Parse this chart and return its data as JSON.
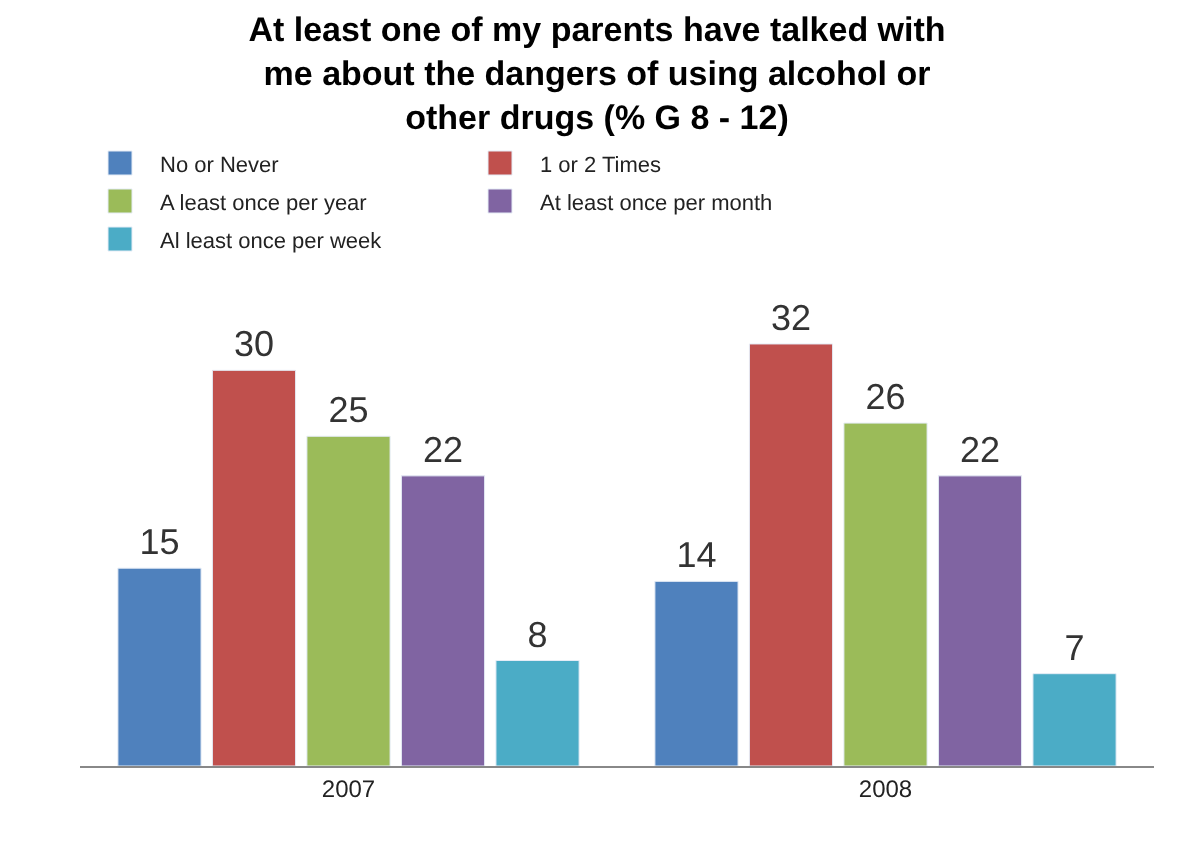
{
  "chart_data": {
    "type": "bar",
    "title": "At least one of my parents have talked with\nme about the dangers of using alcohol or\nother drugs (% G 8 - 12)",
    "categories": [
      "2007",
      "2008"
    ],
    "series": [
      {
        "name": "No or Never",
        "color": "#4f81bd",
        "values": [
          15,
          14
        ]
      },
      {
        "name": "1 or 2 Times",
        "color": "#c0504d",
        "values": [
          30,
          32
        ]
      },
      {
        "name": "A least once per year",
        "color": "#9bbb59",
        "values": [
          25,
          26
        ]
      },
      {
        "name": "At least once per month",
        "color": "#8064a2",
        "values": [
          22,
          22
        ]
      },
      {
        "name": "Al least once per week",
        "color": "#4bacc6",
        "values": [
          8,
          7
        ]
      }
    ],
    "data_labels": true,
    "legend": "top"
  }
}
